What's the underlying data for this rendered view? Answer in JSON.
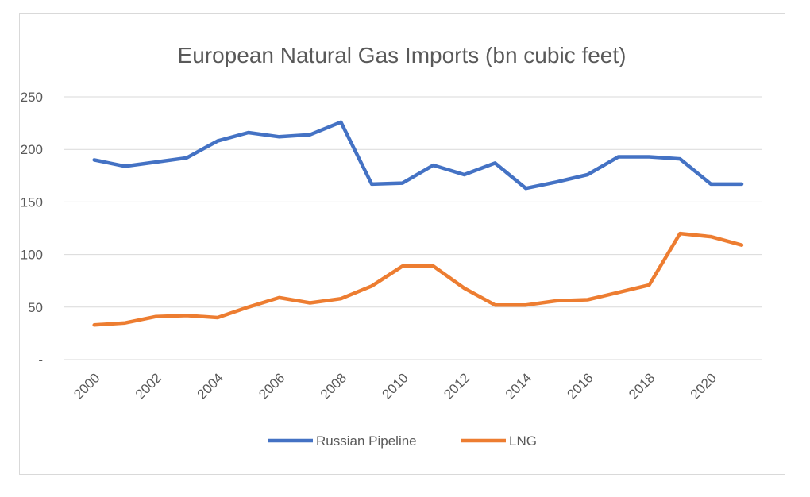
{
  "chart_data": {
    "type": "line",
    "title": "European Natural Gas Imports (bn cubic feet)",
    "xlabel": "",
    "ylabel": "",
    "x": [
      2000,
      2001,
      2002,
      2003,
      2004,
      2005,
      2006,
      2007,
      2008,
      2009,
      2010,
      2011,
      2012,
      2013,
      2014,
      2015,
      2016,
      2017,
      2018,
      2019,
      2020,
      2021
    ],
    "x_tick_labels": [
      "2000",
      "2002",
      "2004",
      "2006",
      "2008",
      "2010",
      "2012",
      "2014",
      "2016",
      "2018",
      "2020"
    ],
    "y_ticks": [
      0,
      50,
      100,
      150,
      200,
      250
    ],
    "y_tick_labels": [
      "-",
      "50",
      "100",
      "150",
      "200",
      "250"
    ],
    "ylim": [
      0,
      250
    ],
    "grid": true,
    "legend_position": "bottom",
    "series": [
      {
        "name": "Russian Pipeline",
        "color": "#4472c4",
        "values": [
          190,
          184,
          188,
          192,
          208,
          216,
          212,
          214,
          226,
          167,
          168,
          185,
          176,
          187,
          163,
          169,
          176,
          193,
          193,
          191,
          167,
          167
        ]
      },
      {
        "name": "LNG",
        "color": "#ed7d31",
        "values": [
          33,
          35,
          41,
          42,
          40,
          50,
          59,
          54,
          58,
          70,
          89,
          89,
          68,
          52,
          52,
          56,
          57,
          64,
          71,
          120,
          117,
          109
        ]
      }
    ]
  }
}
